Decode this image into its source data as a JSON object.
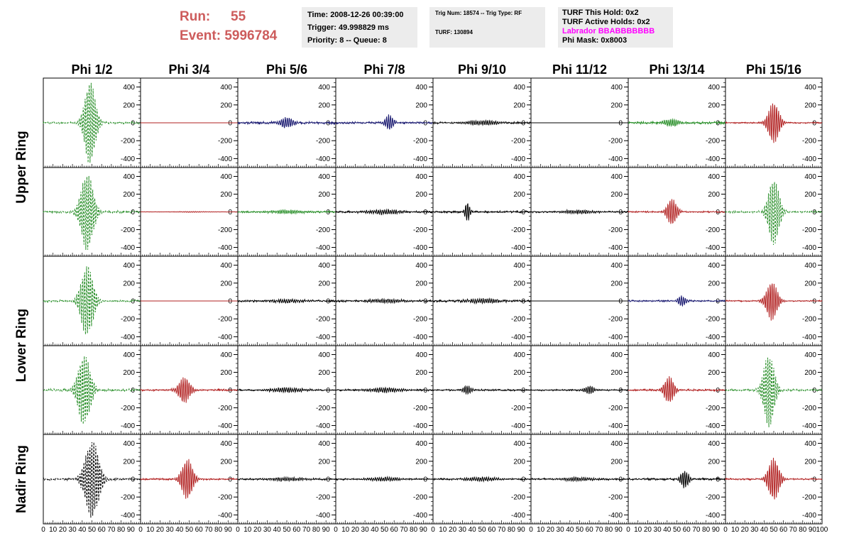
{
  "header": {
    "run_label": "Run:",
    "run_value": "55",
    "event_label": "Event:",
    "event_value": "5996784",
    "time": "Time: 2008-12-26 00:39:00",
    "trigger": "Trigger: 49.998829 ms",
    "priority": "Priority: 8 -- Queue: 8",
    "trig_num": "Trig Num: 18574 -- Trig Type: RF",
    "turf": "TURF: 130894",
    "turf_hold": "TURF This Hold: 0x2",
    "turf_active": "TURF Active Holds: 0x2",
    "labrador": "Labrador BBABBBBBBB",
    "phi_mask": "Phi Mask: 0x8003"
  },
  "colors": {
    "run_text": "#cd5c5c",
    "labrador": "#ff00ff",
    "box_bg": "#ececec",
    "green": "#228b22",
    "red": "#b22222",
    "blue": "#191970",
    "black": "#000000"
  },
  "chart_data": {
    "type": "line",
    "columns": [
      "Phi 1/2",
      "Phi 3/4",
      "Phi 5/6",
      "Phi 7/8",
      "Phi 9/10",
      "Phi 11/12",
      "Phi 13/14",
      "Phi 15/16"
    ],
    "row_labels": [
      "Upper Ring",
      "Lower Ring",
      "Nadir Ring"
    ],
    "ylim": [
      -500,
      500
    ],
    "yticks": [
      -400,
      -200,
      0,
      200,
      400
    ],
    "xlim": [
      0,
      100
    ],
    "xticks": [
      0,
      10,
      20,
      30,
      40,
      50,
      60,
      70,
      80,
      90,
      100
    ],
    "xtick_labels": [
      "0",
      "10",
      "20",
      "30",
      "40",
      "50",
      "60",
      "70",
      "80",
      "90",
      "100"
    ],
    "waveforms": [
      [
        {
          "color": "green",
          "dashed": true,
          "peak": 470,
          "center": 48,
          "width": 7,
          "noise": 12
        },
        {
          "color": "red",
          "dashed": false,
          "peak": 0,
          "center": 50,
          "width": 5,
          "noise": 0
        },
        {
          "color": "blue",
          "dashed": false,
          "peak": 60,
          "center": 50,
          "width": 8,
          "noise": 15
        },
        {
          "color": "blue",
          "dashed": false,
          "peak": 90,
          "center": 55,
          "width": 5,
          "noise": 12
        },
        {
          "color": "black",
          "dashed": false,
          "peak": 25,
          "center": 50,
          "width": 20,
          "noise": 12
        },
        {
          "color": "black",
          "dashed": false,
          "peak": 0,
          "center": 50,
          "width": 5,
          "noise": 0
        },
        {
          "color": "green",
          "dashed": false,
          "peak": 40,
          "center": 45,
          "width": 10,
          "noise": 15
        },
        {
          "color": "red",
          "dashed": false,
          "peak": 230,
          "center": 50,
          "width": 7,
          "noise": 8
        }
      ],
      [
        {
          "color": "green",
          "dashed": true,
          "peak": 440,
          "center": 45,
          "width": 8,
          "noise": 15
        },
        {
          "color": "red",
          "dashed": false,
          "peak": 5,
          "center": 50,
          "width": 20,
          "noise": 2
        },
        {
          "color": "green",
          "dashed": false,
          "peak": 20,
          "center": 50,
          "width": 20,
          "noise": 10
        },
        {
          "color": "black",
          "dashed": false,
          "peak": 25,
          "center": 50,
          "width": 20,
          "noise": 12
        },
        {
          "color": "black",
          "dashed": false,
          "peak": 110,
          "center": 35,
          "width": 3,
          "noise": 12
        },
        {
          "color": "black",
          "dashed": false,
          "peak": 20,
          "center": 50,
          "width": 20,
          "noise": 10
        },
        {
          "color": "red",
          "dashed": false,
          "peak": 150,
          "center": 45,
          "width": 6,
          "noise": 10
        },
        {
          "color": "green",
          "dashed": true,
          "peak": 380,
          "center": 50,
          "width": 7,
          "noise": 12
        }
      ],
      [
        {
          "color": "green",
          "dashed": true,
          "peak": 400,
          "center": 45,
          "width": 8,
          "noise": 12
        },
        {
          "color": "red",
          "dashed": false,
          "peak": 0,
          "center": 50,
          "width": 5,
          "noise": 0
        },
        {
          "color": "black",
          "dashed": false,
          "peak": 20,
          "center": 50,
          "width": 20,
          "noise": 12
        },
        {
          "color": "black",
          "dashed": false,
          "peak": 20,
          "center": 50,
          "width": 20,
          "noise": 12
        },
        {
          "color": "black",
          "dashed": false,
          "peak": 25,
          "center": 50,
          "width": 20,
          "noise": 12
        },
        {
          "color": "black",
          "dashed": false,
          "peak": 0,
          "center": 50,
          "width": 5,
          "noise": 0
        },
        {
          "color": "blue",
          "dashed": false,
          "peak": 60,
          "center": 55,
          "width": 5,
          "noise": 10
        },
        {
          "color": "red",
          "dashed": false,
          "peak": 220,
          "center": 48,
          "width": 7,
          "noise": 8
        }
      ],
      [
        {
          "color": "green",
          "dashed": true,
          "peak": 400,
          "center": 42,
          "width": 8,
          "noise": 15
        },
        {
          "color": "red",
          "dashed": false,
          "peak": 150,
          "center": 45,
          "width": 7,
          "noise": 12
        },
        {
          "color": "black",
          "dashed": false,
          "peak": 25,
          "center": 50,
          "width": 20,
          "noise": 10
        },
        {
          "color": "black",
          "dashed": false,
          "peak": 25,
          "center": 50,
          "width": 20,
          "noise": 10
        },
        {
          "color": "black",
          "dashed": false,
          "peak": 50,
          "center": 35,
          "width": 5,
          "noise": 10
        },
        {
          "color": "black",
          "dashed": false,
          "peak": 45,
          "center": 60,
          "width": 6,
          "noise": 10
        },
        {
          "color": "red",
          "dashed": false,
          "peak": 150,
          "center": 42,
          "width": 6,
          "noise": 12
        },
        {
          "color": "green",
          "dashed": true,
          "peak": 420,
          "center": 45,
          "width": 7,
          "noise": 12
        }
      ],
      [
        {
          "color": "black",
          "dashed": true,
          "peak": 440,
          "center": 50,
          "width": 9,
          "noise": 15
        },
        {
          "color": "red",
          "dashed": false,
          "peak": 230,
          "center": 48,
          "width": 7,
          "noise": 10
        },
        {
          "color": "black",
          "dashed": false,
          "peak": 20,
          "center": 50,
          "width": 20,
          "noise": 10
        },
        {
          "color": "black",
          "dashed": false,
          "peak": 20,
          "center": 50,
          "width": 20,
          "noise": 10
        },
        {
          "color": "black",
          "dashed": false,
          "peak": 20,
          "center": 50,
          "width": 20,
          "noise": 10
        },
        {
          "color": "black",
          "dashed": false,
          "peak": 20,
          "center": 50,
          "width": 20,
          "noise": 10
        },
        {
          "color": "black",
          "dashed": false,
          "peak": 100,
          "center": 58,
          "width": 5,
          "noise": 12
        },
        {
          "color": "red",
          "dashed": false,
          "peak": 240,
          "center": 50,
          "width": 7,
          "noise": 10
        }
      ]
    ]
  }
}
